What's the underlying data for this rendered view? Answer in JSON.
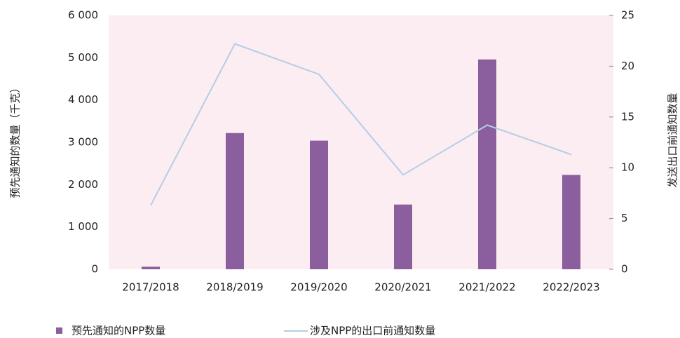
{
  "chart_data": {
    "type": "bar-line",
    "y_label": "预先通知的数量（千克）",
    "y2_label": "发送出口前通知数量",
    "categories": [
      "2017/2018",
      "2018/2019",
      "2019/2020",
      "2020/2021",
      "2021/2022",
      "2022/2023"
    ],
    "series": [
      {
        "name": "预先通知的NPP数量",
        "type": "bar",
        "color": "#8b5e9e",
        "values": [
          60,
          3220,
          3040,
          1530,
          4960,
          2230
        ]
      },
      {
        "name": "涉及NPP的出口前通知数量",
        "type": "line",
        "axis": "y2",
        "color": "#b5cde6",
        "values": [
          6.3,
          22.2,
          19.2,
          9.3,
          14.2,
          11.3
        ]
      }
    ],
    "ylim": [
      0,
      6000
    ],
    "yticks": [
      0,
      {
        "value": 1000,
        "label": "1 000"
      },
      {
        "value": 2000,
        "label": "2 000"
      },
      {
        "value": 3000,
        "label": "3 000"
      },
      {
        "value": 4000,
        "label": "4 000"
      },
      {
        "value": 5000,
        "label": "5 000"
      },
      {
        "value": 6000,
        "label": "6 000"
      }
    ],
    "y2lim": [
      0,
      25
    ],
    "y2ticks": [
      0,
      5,
      10,
      15,
      20,
      25
    ],
    "background": "#fcedf2"
  }
}
